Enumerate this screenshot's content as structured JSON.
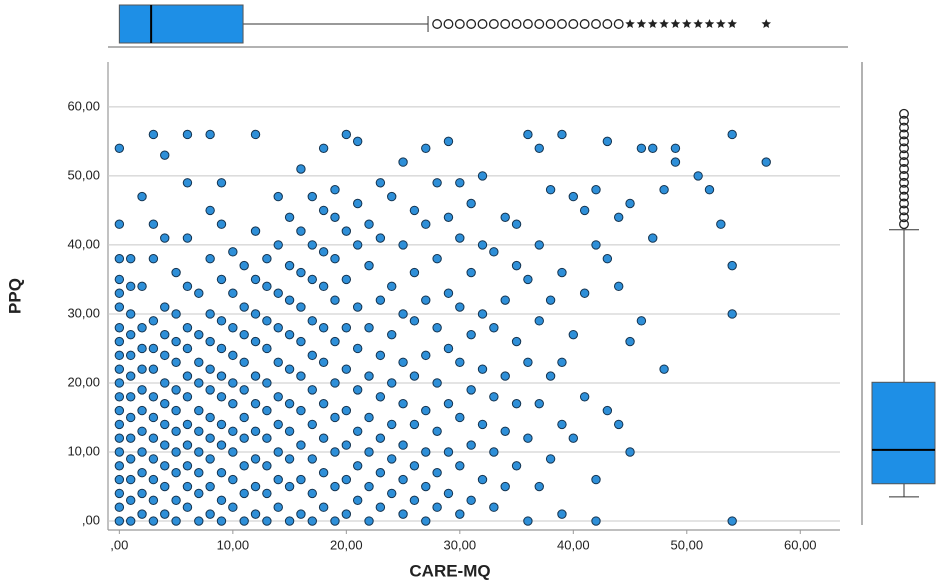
{
  "chart_data": [
    {
      "type": "scatter",
      "x_label": "CARE-MQ",
      "y_label": "PPQ",
      "xlim": [
        -1,
        63.5
      ],
      "ylim": [
        -1.3,
        66.5
      ],
      "xticks": [
        {
          "value": 0,
          "label": ",00"
        },
        {
          "value": 10,
          "label": "10,00"
        },
        {
          "value": 20,
          "label": "20,00"
        },
        {
          "value": 30,
          "label": "30,00"
        },
        {
          "value": 40,
          "label": "40,00"
        },
        {
          "value": 50,
          "label": "50,00"
        },
        {
          "value": 60,
          "label": "60,00"
        }
      ],
      "yticks": [
        {
          "value": 0,
          "label": ",00"
        },
        {
          "value": 10,
          "label": "10,00"
        },
        {
          "value": 20,
          "label": "20,00"
        },
        {
          "value": 30,
          "label": "30,00"
        },
        {
          "value": 40,
          "label": "40,00"
        },
        {
          "value": 50,
          "label": "50,00"
        },
        {
          "value": 60,
          "label": "60,00"
        }
      ],
      "grid": true,
      "color": "#2e8fd8",
      "x": [
        0,
        0,
        0,
        0,
        0,
        0,
        0,
        0,
        0,
        0,
        0,
        0,
        0,
        0,
        0,
        0,
        0,
        0,
        0,
        0,
        0,
        1,
        1,
        1,
        1,
        1,
        1,
        1,
        1,
        1,
        1,
        1,
        1,
        1,
        2,
        2,
        2,
        2,
        2,
        2,
        2,
        2,
        2,
        2,
        2,
        2,
        3,
        3,
        3,
        3,
        3,
        3,
        3,
        3,
        3,
        3,
        3,
        3,
        3,
        4,
        4,
        4,
        4,
        4,
        4,
        4,
        4,
        4,
        4,
        4,
        4,
        5,
        5,
        5,
        5,
        5,
        5,
        5,
        5,
        5,
        5,
        5,
        6,
        6,
        6,
        6,
        6,
        6,
        6,
        6,
        6,
        6,
        6,
        6,
        6,
        7,
        7,
        7,
        7,
        7,
        7,
        7,
        7,
        7,
        7,
        8,
        8,
        8,
        8,
        8,
        8,
        8,
        8,
        8,
        8,
        8,
        8,
        9,
        9,
        9,
        9,
        9,
        9,
        9,
        9,
        9,
        9,
        9,
        9,
        10,
        10,
        10,
        10,
        10,
        10,
        10,
        10,
        10,
        10,
        11,
        11,
        11,
        11,
        11,
        11,
        11,
        11,
        11,
        11,
        12,
        12,
        12,
        12,
        12,
        12,
        12,
        12,
        12,
        12,
        12,
        13,
        13,
        13,
        13,
        13,
        13,
        13,
        13,
        13,
        13,
        14,
        14,
        14,
        14,
        14,
        14,
        14,
        14,
        14,
        14,
        15,
        15,
        15,
        15,
        15,
        15,
        15,
        15,
        15,
        15,
        16,
        16,
        16,
        16,
        16,
        16,
        16,
        16,
        16,
        16,
        17,
        17,
        17,
        17,
        17,
        17,
        17,
        17,
        17,
        17,
        18,
        18,
        18,
        18,
        18,
        18,
        18,
        18,
        18,
        18,
        19,
        19,
        19,
        19,
        19,
        19,
        19,
        19,
        19,
        19,
        20,
        20,
        20,
        20,
        20,
        20,
        20,
        20,
        20,
        21,
        21,
        21,
        21,
        21,
        21,
        21,
        21,
        21,
        22,
        22,
        22,
        22,
        22,
        22,
        22,
        22,
        23,
        23,
        23,
        23,
        23,
        23,
        23,
        23,
        24,
        24,
        24,
        24,
        24,
        24,
        24,
        25,
        25,
        25,
        25,
        25,
        25,
        25,
        25,
        26,
        26,
        26,
        26,
        26,
        26,
        26,
        27,
        27,
        27,
        27,
        27,
        27,
        27,
        27,
        28,
        28,
        28,
        28,
        28,
        28,
        28,
        29,
        29,
        29,
        29,
        29,
        29,
        29,
        30,
        30,
        30,
        30,
        30,
        30,
        30,
        31,
        31,
        31,
        31,
        31,
        31,
        32,
        32,
        32,
        32,
        32,
        32,
        33,
        33,
        33,
        33,
        33,
        34,
        34,
        34,
        34,
        34,
        35,
        35,
        35,
        35,
        35,
        36,
        36,
        36,
        36,
        36,
        37,
        37,
        37,
        37,
        37,
        38,
        38,
        38,
        38,
        39,
        39,
        39,
        39,
        39,
        40,
        40,
        40,
        41,
        41,
        41,
        42,
        42,
        42,
        42,
        43,
        43,
        43,
        44,
        44,
        44,
        45,
        45,
        45,
        46,
        46,
        47,
        47,
        48,
        48,
        49,
        49,
        51,
        52,
        53,
        54,
        54,
        54,
        54,
        57
      ],
      "values": [
        0,
        2,
        4,
        6,
        8,
        10,
        12,
        14,
        16,
        18,
        20,
        22,
        24,
        26,
        28,
        31,
        33,
        35,
        38,
        43,
        54,
        0,
        3,
        6,
        9,
        12,
        15,
        18,
        21,
        24,
        27,
        30,
        34,
        38,
        1,
        4,
        7,
        10,
        13,
        16,
        19,
        22,
        25,
        28,
        34,
        47,
        0,
        3,
        6,
        9,
        12,
        15,
        18,
        22,
        25,
        29,
        38,
        43,
        56,
        1,
        5,
        8,
        11,
        14,
        17,
        20,
        24,
        27,
        31,
        41,
        53,
        0,
        3,
        7,
        10,
        13,
        16,
        19,
        23,
        26,
        30,
        36,
        2,
        5,
        8,
        11,
        14,
        18,
        21,
        25,
        28,
        34,
        41,
        49,
        56,
        0,
        4,
        7,
        10,
        13,
        16,
        20,
        23,
        27,
        33,
        1,
        5,
        9,
        12,
        15,
        19,
        22,
        26,
        30,
        38,
        45,
        56,
        0,
        3,
        7,
        11,
        14,
        18,
        21,
        25,
        29,
        35,
        43,
        49,
        2,
        6,
        10,
        13,
        17,
        20,
        24,
        28,
        33,
        39,
        0,
        4,
        8,
        12,
        15,
        19,
        23,
        27,
        31,
        37,
        1,
        5,
        9,
        13,
        17,
        21,
        26,
        30,
        35,
        42,
        56,
        0,
        4,
        8,
        12,
        16,
        20,
        25,
        29,
        34,
        38,
        2,
        6,
        10,
        14,
        18,
        23,
        28,
        33,
        40,
        47,
        0,
        5,
        9,
        13,
        17,
        22,
        27,
        32,
        37,
        44,
        1,
        6,
        11,
        16,
        21,
        26,
        31,
        36,
        42,
        51,
        0,
        4,
        9,
        14,
        19,
        24,
        29,
        35,
        40,
        47,
        2,
        7,
        12,
        17,
        23,
        28,
        34,
        39,
        45,
        54,
        0,
        5,
        10,
        15,
        20,
        26,
        32,
        38,
        44,
        48,
        1,
        6,
        11,
        16,
        22,
        28,
        35,
        42,
        56,
        3,
        8,
        13,
        19,
        25,
        31,
        40,
        46,
        55,
        0,
        5,
        10,
        15,
        21,
        28,
        37,
        43,
        2,
        7,
        12,
        18,
        24,
        32,
        41,
        49,
        4,
        9,
        14,
        20,
        27,
        34,
        47,
        1,
        6,
        11,
        17,
        23,
        30,
        40,
        52,
        3,
        8,
        14,
        21,
        29,
        36,
        45,
        0,
        5,
        10,
        16,
        24,
        32,
        43,
        54,
        2,
        7,
        13,
        20,
        28,
        38,
        49,
        4,
        10,
        17,
        25,
        33,
        44,
        55,
        1,
        8,
        15,
        23,
        31,
        41,
        49,
        3,
        11,
        19,
        27,
        36,
        46,
        6,
        14,
        22,
        30,
        40,
        50,
        2,
        10,
        18,
        28,
        39,
        5,
        13,
        21,
        32,
        44,
        8,
        17,
        26,
        37,
        43,
        0,
        12,
        23,
        35,
        56,
        5,
        17,
        29,
        40,
        54,
        9,
        21,
        32,
        48,
        1,
        14,
        23,
        36,
        56,
        12,
        27,
        47,
        18,
        33,
        45,
        0,
        6,
        40,
        48,
        16,
        38,
        55,
        14,
        34,
        44,
        10,
        26,
        46,
        29,
        54,
        41,
        54,
        22,
        48,
        52,
        54,
        50,
        48,
        43,
        0,
        30,
        37,
        56,
        52
      ]
    },
    {
      "type": "boxplot",
      "orientation": "horizontal",
      "color": "#1e8fe6",
      "whisker_low": 0,
      "q1": 0,
      "median": 2.8,
      "q3": 10.9,
      "whisker_high": 27.2,
      "outliers": [
        28,
        29,
        30,
        31,
        32,
        33,
        34,
        35,
        36,
        37,
        38,
        39,
        40,
        41,
        42,
        43,
        44
      ],
      "extremes": [
        45,
        46,
        47,
        48,
        49,
        50,
        51,
        52,
        53,
        54,
        57
      ]
    },
    {
      "type": "boxplot",
      "orientation": "vertical",
      "color": "#1e8fe6",
      "whisker_low": 3.5,
      "q1": 5.4,
      "median": 10.3,
      "q3": 20.1,
      "whisker_high": 42.2,
      "outliers": [
        43,
        44,
        45,
        46,
        47,
        48,
        49,
        50,
        51,
        52,
        53,
        54,
        55,
        56,
        57,
        58,
        59
      ]
    }
  ]
}
